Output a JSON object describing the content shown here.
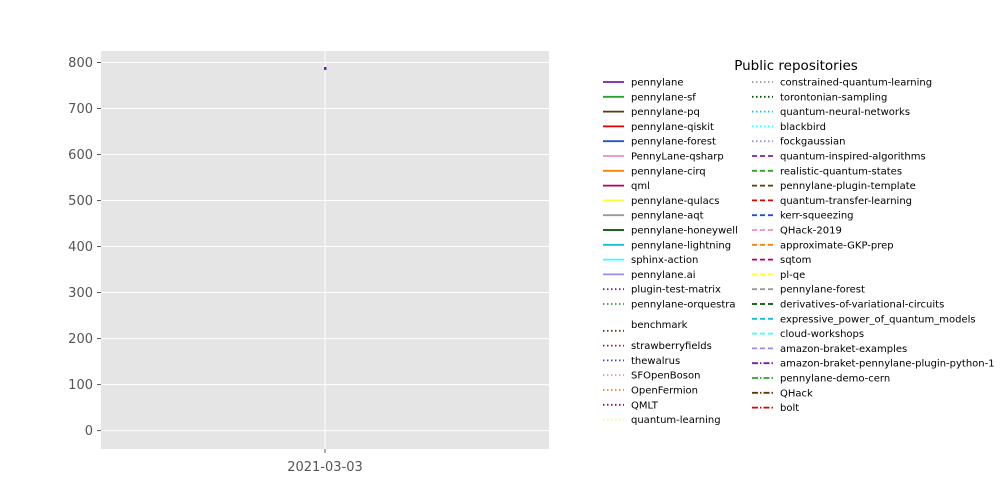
{
  "chart_data": {
    "type": "line",
    "title": "",
    "xlabel": "",
    "ylabel": "",
    "x_ticks": [
      "2021-03-03"
    ],
    "y_ticks": [
      0,
      100,
      200,
      300,
      400,
      500,
      600,
      700,
      800
    ],
    "ylim": [
      -40,
      825
    ],
    "grid": true,
    "legend": {
      "title": "Public repositories",
      "placement": "right, outside plot",
      "columns": 2
    },
    "series": [
      {
        "name": "pennylane",
        "color": "#7b1fa2",
        "style": "solid",
        "x": [
          "2021-03-03"
        ],
        "y": [
          787
        ]
      },
      {
        "name": "pennylane-sf",
        "color": "#2ca02c",
        "style": "solid",
        "x": [],
        "y": []
      },
      {
        "name": "pennylane-pq",
        "color": "#5c3a0a",
        "style": "solid",
        "x": [],
        "y": []
      },
      {
        "name": "pennylane-qiskit",
        "color": "#e00000",
        "style": "solid",
        "x": [],
        "y": []
      },
      {
        "name": "pennylane-forest",
        "color": "#1f4fd8",
        "style": "solid",
        "x": [],
        "y": []
      },
      {
        "name": "PennyLane-qsharp",
        "color": "#f08cc0",
        "style": "solid",
        "x": [],
        "y": []
      },
      {
        "name": "pennylane-cirq",
        "color": "#ff7f0e",
        "style": "solid",
        "x": [],
        "y": []
      },
      {
        "name": "qml",
        "color": "#b0006e",
        "style": "solid",
        "x": [],
        "y": []
      },
      {
        "name": "pennylane-qulacs",
        "color": "#ffff33",
        "style": "solid",
        "x": [],
        "y": []
      },
      {
        "name": "pennylane-aqt",
        "color": "#999999",
        "style": "solid",
        "x": [],
        "y": []
      },
      {
        "name": "pennylane-honeywell",
        "color": "#004d00",
        "style": "solid",
        "x": [],
        "y": []
      },
      {
        "name": "pennylane-lightning",
        "color": "#17becf",
        "style": "solid",
        "x": [],
        "y": []
      },
      {
        "name": "sphinx-action",
        "color": "#33ffff",
        "style": "solid",
        "x": [],
        "y": []
      },
      {
        "name": "pennylane.ai",
        "color": "#9a8cf0",
        "style": "solid",
        "x": [],
        "y": []
      },
      {
        "name": "plugin-test-matrix",
        "color": "#7b1fa2",
        "style": "dotted",
        "x": [],
        "y": []
      },
      {
        "name": "pennylane-orquestra",
        "color": "#2ca02c",
        "style": "dotted",
        "x": [],
        "y": []
      },
      {
        "name": "benchmark",
        "color": "#5c3a0a",
        "style": "dotted",
        "x": [],
        "y": []
      },
      {
        "name": "strawberryfields",
        "color": "#e00000",
        "style": "dotted",
        "x": [],
        "y": []
      },
      {
        "name": "thewalrus",
        "color": "#1f4fd8",
        "style": "dotted",
        "x": [],
        "y": []
      },
      {
        "name": "SFOpenBoson",
        "color": "#f08cc0",
        "style": "dotted",
        "x": [],
        "y": []
      },
      {
        "name": "OpenFermion",
        "color": "#ff7f0e",
        "style": "dotted",
        "x": [],
        "y": []
      },
      {
        "name": "QMLT",
        "color": "#b0006e",
        "style": "dotted",
        "x": [],
        "y": []
      },
      {
        "name": "quantum-learning",
        "color": "#ffff33",
        "style": "dotted",
        "x": [],
        "y": []
      },
      {
        "name": "constrained-quantum-learning",
        "color": "#999999",
        "style": "dotted",
        "x": [],
        "y": []
      },
      {
        "name": "torontonian-sampling",
        "color": "#004d00",
        "style": "dotted",
        "x": [],
        "y": []
      },
      {
        "name": "quantum-neural-networks",
        "color": "#17becf",
        "style": "dotted",
        "x": [],
        "y": []
      },
      {
        "name": "blackbird",
        "color": "#33ffff",
        "style": "dotted",
        "x": [],
        "y": []
      },
      {
        "name": "fockgaussian",
        "color": "#9a8cf0",
        "style": "dotted",
        "x": [],
        "y": []
      },
      {
        "name": "quantum-inspired-algorithms",
        "color": "#7b1fa2",
        "style": "dashed",
        "x": [],
        "y": []
      },
      {
        "name": "realistic-quantum-states",
        "color": "#2ca02c",
        "style": "dashed",
        "x": [],
        "y": []
      },
      {
        "name": "pennylane-plugin-template",
        "color": "#5c3a0a",
        "style": "dashed",
        "x": [],
        "y": []
      },
      {
        "name": "quantum-transfer-learning",
        "color": "#e00000",
        "style": "dashed",
        "x": [],
        "y": []
      },
      {
        "name": "kerr-squeezing",
        "color": "#1f4fd8",
        "style": "dashed",
        "x": [],
        "y": []
      },
      {
        "name": "QHack-2019",
        "color": "#f08cc0",
        "style": "dashed",
        "x": [],
        "y": []
      },
      {
        "name": "approximate-GKP-prep",
        "color": "#ff7f0e",
        "style": "dashed",
        "x": [],
        "y": []
      },
      {
        "name": "sqtom",
        "color": "#b0006e",
        "style": "dashed",
        "x": [],
        "y": []
      },
      {
        "name": "pl-qe",
        "color": "#ffff33",
        "style": "dashed",
        "x": [],
        "y": []
      },
      {
        "name": "pennylane-forest",
        "color": "#999999",
        "style": "dashed",
        "x": [],
        "y": []
      },
      {
        "name": "derivatives-of-variational-circuits",
        "color": "#004d00",
        "style": "dashed",
        "x": [],
        "y": []
      },
      {
        "name": "expressive_power_of_quantum_models",
        "color": "#17becf",
        "style": "dashed",
        "x": [],
        "y": []
      },
      {
        "name": "cloud-workshops",
        "color": "#33ffff",
        "style": "dashed",
        "x": [],
        "y": []
      },
      {
        "name": "amazon-braket-examples",
        "color": "#9a8cf0",
        "style": "dashed",
        "x": [],
        "y": []
      },
      {
        "name": "amazon-braket-pennylane-plugin-python-1",
        "color": "#7b1fa2",
        "style": "dashdot",
        "x": [],
        "y": []
      },
      {
        "name": "pennylane-demo-cern",
        "color": "#2ca02c",
        "style": "dashdot",
        "x": [],
        "y": []
      },
      {
        "name": "QHack",
        "color": "#5c3a0a",
        "style": "dashdot",
        "x": [],
        "y": []
      },
      {
        "name": "bolt",
        "color": "#e00000",
        "style": "dashdot",
        "x": [],
        "y": []
      }
    ]
  }
}
